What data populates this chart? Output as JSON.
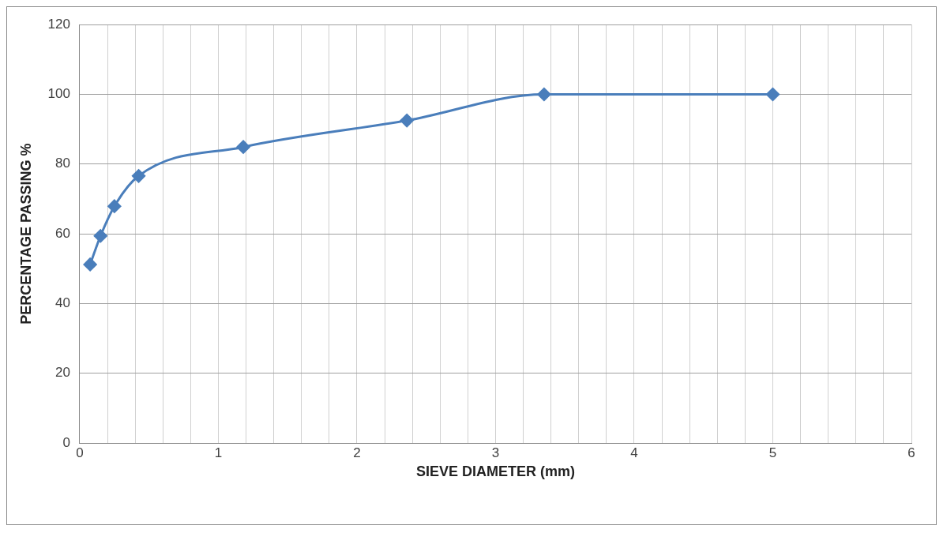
{
  "chart_data": {
    "type": "line",
    "xlabel": "SIEVE DIAMETER (mm)",
    "ylabel": "PERCENTAGE PASSING %",
    "x": [
      0.075,
      0.15,
      0.25,
      0.425,
      1.18,
      2.36,
      3.35,
      5
    ],
    "series": [
      {
        "color": "#4a7ebb",
        "values": [
          51.2,
          59.4,
          67.9,
          76.6,
          84.9,
          92.5,
          100,
          100
        ]
      }
    ],
    "xlim": [
      0,
      6
    ],
    "xticks": [
      0,
      {
        "value": 0.2,
        "label": null
      },
      {
        "value": 0.4,
        "label": null
      },
      {
        "value": 0.6,
        "label": null
      },
      {
        "value": 0.8,
        "label": null
      },
      1,
      {
        "value": 1.2,
        "label": null
      },
      {
        "value": 1.4,
        "label": null
      },
      {
        "value": 1.6,
        "label": null
      },
      {
        "value": 1.8,
        "label": null
      },
      2,
      {
        "value": 2.2,
        "label": null
      },
      {
        "value": 2.4,
        "label": null
      },
      {
        "value": 2.6,
        "label": null
      },
      {
        "value": 2.8,
        "label": null
      },
      3,
      {
        "value": 3.2,
        "label": null
      },
      {
        "value": 3.4,
        "label": null
      },
      {
        "value": 3.6,
        "label": null
      },
      {
        "value": 3.8,
        "label": null
      },
      4,
      {
        "value": 4.2,
        "label": null
      },
      {
        "value": 4.4,
        "label": null
      },
      {
        "value": 4.6,
        "label": null
      },
      {
        "value": 4.8,
        "label": null
      },
      5,
      {
        "value": 5.2,
        "label": null
      },
      {
        "value": 5.4,
        "label": null
      },
      {
        "value": 5.6,
        "label": null
      },
      {
        "value": 5.8,
        "label": null
      },
      6
    ],
    "ylim": [
      0,
      120
    ],
    "yticks": [
      0,
      20,
      40,
      60,
      80,
      100,
      120
    ],
    "grid": true,
    "legend": false,
    "marker": "diamond",
    "line_style": "solid"
  }
}
